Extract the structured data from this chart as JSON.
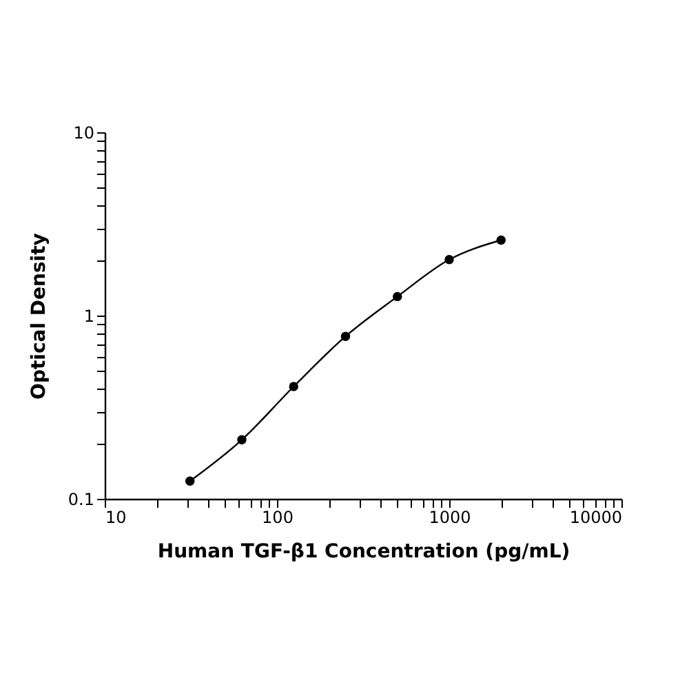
{
  "chart_data": {
    "type": "scatter",
    "xlabel": "Human TGF-β1 Concentration (pg/mL)",
    "ylabel": "Optical Density",
    "log": "xy",
    "grid": false,
    "xlim": [
      10,
      10000
    ],
    "ylim": [
      0.1,
      10
    ],
    "xticks": [
      10,
      {
        "value": 20,
        "label": null
      },
      {
        "value": 30,
        "label": null
      },
      {
        "value": 40,
        "label": null
      },
      {
        "value": 50,
        "label": null
      },
      {
        "value": 60,
        "label": null
      },
      {
        "value": 70,
        "label": null
      },
      {
        "value": 80,
        "label": null
      },
      {
        "value": 90,
        "label": null
      },
      100,
      {
        "value": 200,
        "label": null
      },
      {
        "value": 300,
        "label": null
      },
      {
        "value": 400,
        "label": null
      },
      {
        "value": 500,
        "label": null
      },
      {
        "value": 600,
        "label": null
      },
      {
        "value": 700,
        "label": null
      },
      {
        "value": 800,
        "label": null
      },
      {
        "value": 900,
        "label": null
      },
      1000,
      {
        "value": 2000,
        "label": null
      },
      {
        "value": 3000,
        "label": null
      },
      {
        "value": 4000,
        "label": null
      },
      {
        "value": 5000,
        "label": null
      },
      {
        "value": 6000,
        "label": null
      },
      {
        "value": 7000,
        "label": null
      },
      {
        "value": 8000,
        "label": null
      },
      {
        "value": 9000,
        "label": null
      },
      10000
    ],
    "yticks": [
      0.1,
      {
        "value": 0.2,
        "label": null
      },
      {
        "value": 0.3,
        "label": null
      },
      {
        "value": 0.4,
        "label": null
      },
      {
        "value": 0.5,
        "label": null
      },
      {
        "value": 0.6,
        "label": null
      },
      {
        "value": 0.7,
        "label": null
      },
      {
        "value": 0.8,
        "label": null
      },
      {
        "value": 0.9,
        "label": null
      },
      1,
      {
        "value": 2,
        "label": null
      },
      {
        "value": 3,
        "label": null
      },
      {
        "value": 4,
        "label": null
      },
      {
        "value": 5,
        "label": null
      },
      {
        "value": 6,
        "label": null
      },
      {
        "value": 7,
        "label": null
      },
      {
        "value": 8,
        "label": null
      },
      {
        "value": 9,
        "label": null
      },
      10
    ],
    "series": [
      {
        "color": "#000000",
        "marker": "circle",
        "x": [
          31.25,
          62.5,
          125,
          250,
          500,
          1000,
          2000
        ],
        "values": [
          0.125,
          0.21,
          0.41,
          0.77,
          1.27,
          2.02,
          2.58
        ]
      },
      {
        "type": "line",
        "color": "#000000",
        "x": [
          31.25,
          62.5,
          125,
          250,
          500,
          1000,
          2000
        ],
        "values": [
          0.125,
          0.21,
          0.41,
          0.77,
          1.27,
          2.02,
          2.58
        ],
        "line_style": "solid"
      }
    ]
  }
}
